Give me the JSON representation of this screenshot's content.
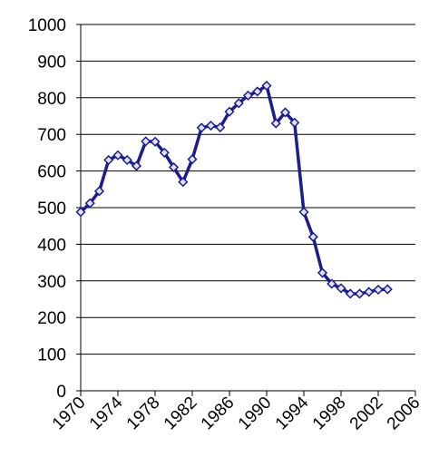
{
  "chart_data": {
    "type": "line",
    "x": [
      1970,
      1971,
      1972,
      1973,
      1974,
      1975,
      1976,
      1977,
      1978,
      1979,
      1980,
      1981,
      1982,
      1983,
      1984,
      1985,
      1986,
      1987,
      1988,
      1989,
      1990,
      1991,
      1992,
      1993,
      1994,
      1995,
      1996,
      1997,
      1998,
      1999,
      2000,
      2001,
      2002,
      2003
    ],
    "series": [
      {
        "color": "#1c1c8a",
        "values": [
          488,
          512,
          545,
          630,
          643,
          630,
          614,
          681,
          680,
          650,
          610,
          570,
          632,
          718,
          724,
          719,
          762,
          785,
          806,
          817,
          833,
          730,
          760,
          732,
          488,
          420,
          322,
          292,
          280,
          265,
          265,
          270,
          276,
          277
        ]
      }
    ],
    "xlim": [
      1970,
      2006
    ],
    "xticks": [
      1970,
      1974,
      1978,
      1982,
      1986,
      1990,
      1994,
      1998,
      2002,
      2006
    ],
    "ylim": [
      0,
      1000
    ],
    "yticks": [
      0,
      100,
      200,
      300,
      400,
      500,
      600,
      700,
      800,
      900,
      1000
    ],
    "grid": true
  }
}
